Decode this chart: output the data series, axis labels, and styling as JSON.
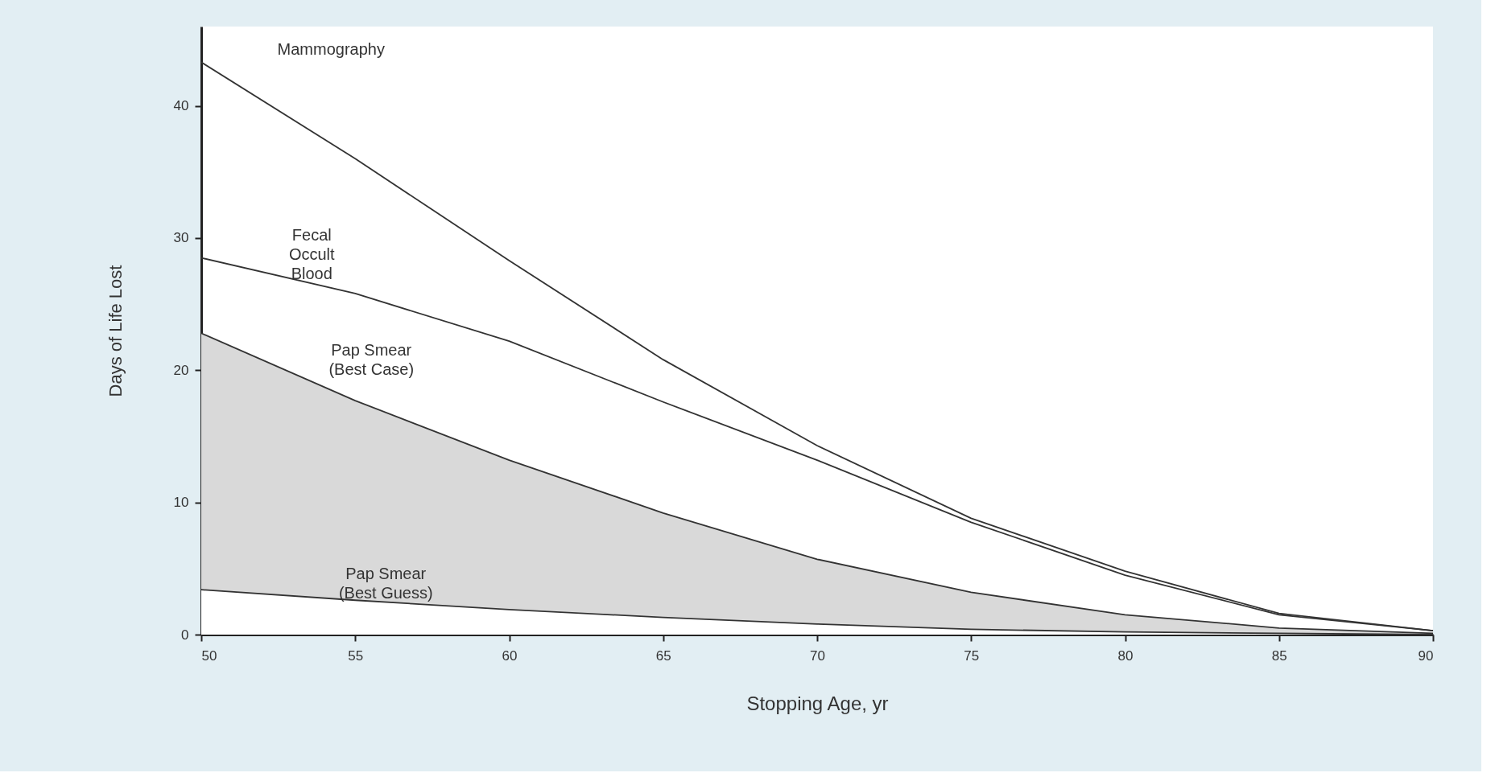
{
  "chart_data": {
    "type": "line",
    "xlabel": "Stopping Age, yr",
    "ylabel": "Days of Life Lost",
    "x": [
      50,
      55,
      60,
      65,
      70,
      75,
      80,
      85,
      90
    ],
    "series": [
      {
        "name": "Mammography",
        "color": "#333333",
        "values": [
          43.3,
          36,
          28.3,
          20.8,
          14.3,
          8.8,
          4.8,
          1.6,
          0.3
        ]
      },
      {
        "name": "Fecal Occult Blood",
        "color": "#333333",
        "values": [
          28.5,
          25.8,
          22.2,
          17.6,
          13.2,
          8.5,
          4.5,
          1.5,
          0.3
        ]
      },
      {
        "name": "Pap Smear (Best Case)",
        "type": "area",
        "color": "#d9d9d9",
        "values": [
          22.8,
          17.7,
          13.2,
          9.2,
          5.7,
          3.2,
          1.5,
          0.5,
          0.1
        ]
      },
      {
        "name": "Pap Smear (Best Guess)",
        "type": "area",
        "color": "#ffffff",
        "values": [
          3.4,
          2.6,
          1.9,
          1.3,
          0.8,
          0.4,
          0.2,
          0.1,
          0
        ]
      }
    ],
    "xlim": [
      50,
      90
    ],
    "xticks": [
      50,
      55,
      60,
      65,
      70,
      75,
      80,
      85,
      90
    ],
    "ylim": [
      0,
      46
    ],
    "yticks": [
      0,
      10,
      20,
      30,
      40
    ],
    "grid": false,
    "legend": false,
    "marker": "none",
    "line_style": "solid"
  }
}
